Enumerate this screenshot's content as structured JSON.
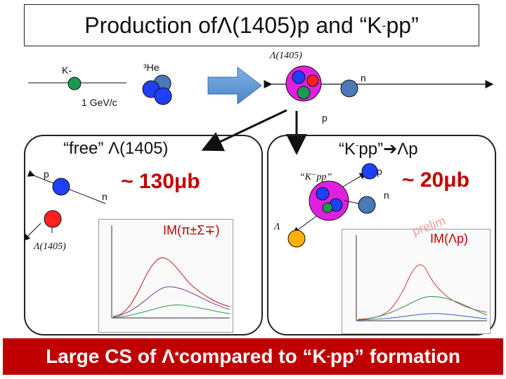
{
  "title": {
    "pre": "Production of ",
    "symbol": "Λ",
    "post": "(1405)p and “K",
    "sup": "-",
    "end": "pp”"
  },
  "top": {
    "kminus": "K-",
    "he3": "³He",
    "momentum": "1 GeV/c",
    "lambda1405": "Λ(1405)",
    "n": "n",
    "p": "p"
  },
  "left_panel": {
    "heading": "“free” Λ(1405)",
    "p": "p",
    "n": "n",
    "cs": "~ 130μb",
    "lambda1405": "Λ(1405)",
    "im": "IM(π±Σ∓)"
  },
  "right_panel": {
    "heading_pre": "“K",
    "heading_sup": "-",
    "heading_post": "pp”➔Λp",
    "kpp": "“K⁻pp”",
    "p": "p",
    "n": "n",
    "cs": "~ 20μb",
    "lambda": "Λ",
    "im": "IM(Λp)",
    "watermark": "prelim"
  },
  "bottom": {
    "pre": "Large CS of Λ",
    "sup": "*",
    "post": "compared to “K",
    "sup2": "-",
    "end": "pp” formation"
  },
  "colors": {
    "proton": "#1f3fff",
    "neutron": "#4a78b8",
    "kaon": "#1a9a4a",
    "lambda": "#ffb000",
    "red": "#ff2020",
    "magenta": "#e020e0",
    "accent": "#c00000"
  }
}
